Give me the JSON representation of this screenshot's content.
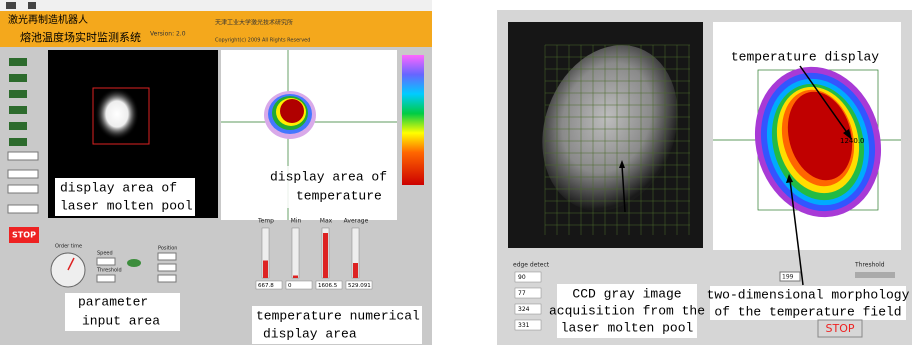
{
  "left_panel": {
    "header": {
      "title_line1": "激光再制造机器人",
      "title_line2": "熔池温度场实时监测系统",
      "version": "Version: 2.0",
      "institute": "天津工业大学激光技术研究所",
      "copyright": "Copyright(c) 2009  All Rights Reserved"
    },
    "annotations": {
      "molten_pool": [
        "display area of",
        "laser molten pool"
      ],
      "temperature": [
        "display area of",
        "temperature"
      ],
      "parameter": [
        "parameter",
        "input area"
      ],
      "numerical": [
        "temperature numerical",
        "display area"
      ]
    },
    "stop": "STOP",
    "controls": {
      "order_time": "Order time",
      "speed": "Speed",
      "threshold": "Threshold",
      "position": "Position"
    },
    "readouts": {
      "labels": [
        "Temp",
        "Min",
        "Max",
        "Average"
      ],
      "values": [
        "667.8",
        "0",
        "1606.5",
        "529.091"
      ]
    }
  },
  "right_panel": {
    "temperature_display": "temperature display",
    "peak_value": "1240.0",
    "edge_detect": {
      "label": "edge detect",
      "values": [
        "90",
        "77",
        "324",
        "331"
      ]
    },
    "annotations": {
      "ccd": [
        "CCD gray image",
        "acquisition from the",
        "laser molten pool"
      ],
      "morphology": [
        "two-dimensional morphology",
        "of the temperature field"
      ]
    },
    "threshold": "Threshold",
    "threshold_value": "199",
    "stop": "STOP"
  }
}
